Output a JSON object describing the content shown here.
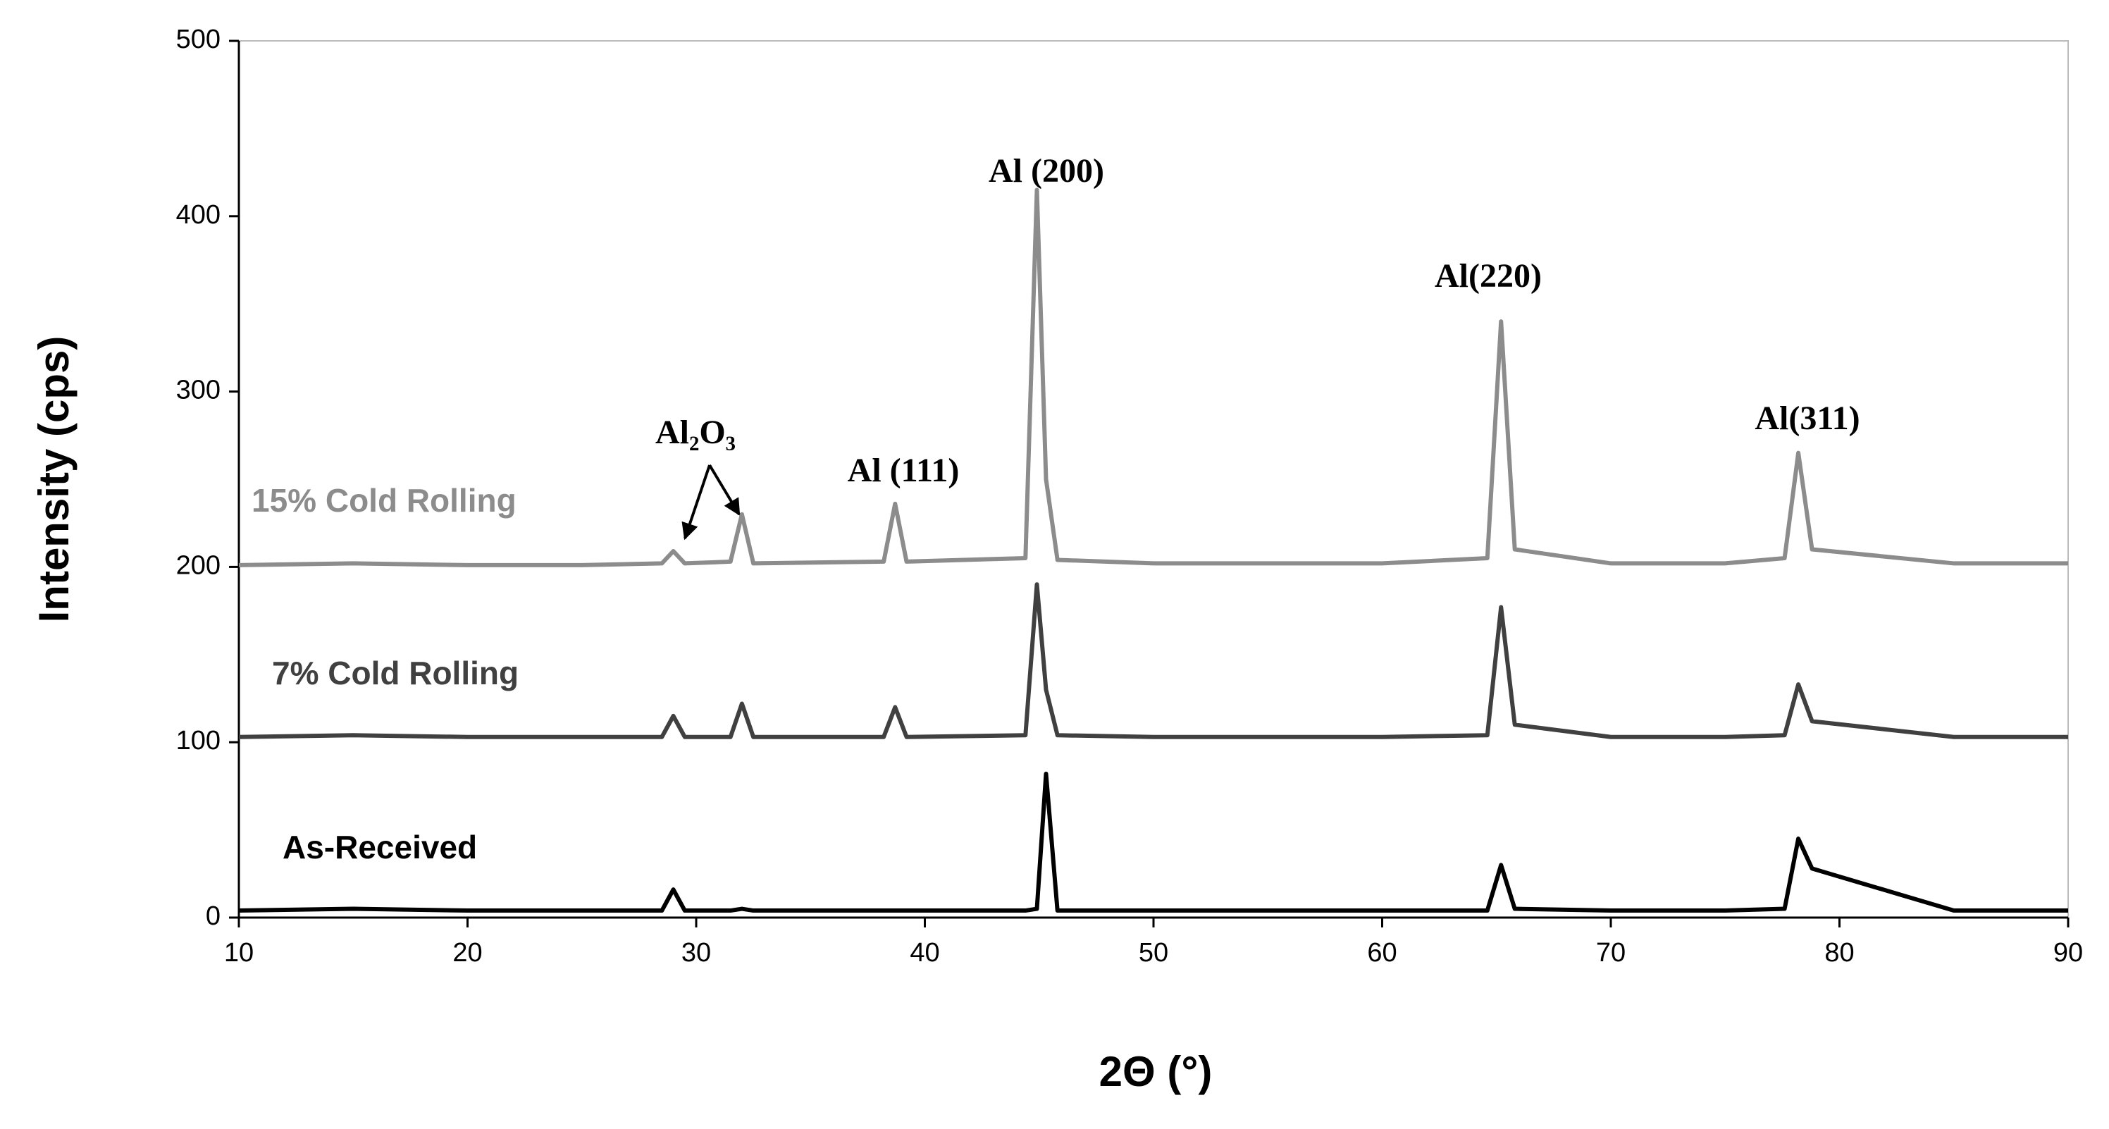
{
  "chart_data": {
    "type": "line",
    "x_label": "2Θ (°)",
    "y_label": "Intensity (cps)",
    "x": [
      10,
      15,
      20,
      25,
      28.5,
      29,
      29.5,
      31.5,
      32,
      32.5,
      38.2,
      38.7,
      39.2,
      44.4,
      44.9,
      45.3,
      45.8,
      50,
      55,
      60,
      64.6,
      65.2,
      65.8,
      70,
      75,
      77.6,
      78.2,
      78.8,
      85,
      90
    ],
    "series": [
      {
        "name": "15% Cold  Rolling",
        "color": "#8c8c8c",
        "values": [
          201,
          202,
          201,
          201,
          202,
          209,
          202,
          203,
          230,
          202,
          203,
          236,
          203,
          205,
          415,
          250,
          204,
          202,
          202,
          202,
          205,
          340,
          210,
          202,
          202,
          205,
          265,
          210,
          202,
          202
        ]
      },
      {
        "name": "7% Cold  Rolling",
        "color": "#404040",
        "values": [
          103,
          104,
          103,
          103,
          103,
          115,
          103,
          103,
          122,
          103,
          103,
          120,
          103,
          104,
          190,
          130,
          104,
          103,
          103,
          103,
          104,
          177,
          110,
          103,
          103,
          104,
          133,
          112,
          103,
          103
        ]
      },
      {
        "name": "As-Received",
        "color": "#000000",
        "values": [
          4,
          5,
          4,
          4,
          4,
          16,
          4,
          4,
          5,
          4,
          4,
          4,
          4,
          4,
          5,
          82,
          4,
          4,
          4,
          4,
          4,
          30,
          5,
          4,
          4,
          5,
          45,
          28,
          4,
          4
        ]
      }
    ],
    "annotations": [
      "Al₂O₃",
      "Al (111)",
      "Al (200)",
      "Al(220)",
      "Al(311)"
    ],
    "xlim": [
      10,
      90
    ],
    "xticks": [
      10,
      20,
      30,
      40,
      50,
      60,
      70,
      80,
      90
    ],
    "ylim": [
      0,
      500
    ],
    "yticks": [
      0,
      100,
      200,
      300,
      400,
      500
    ],
    "grid": false
  }
}
